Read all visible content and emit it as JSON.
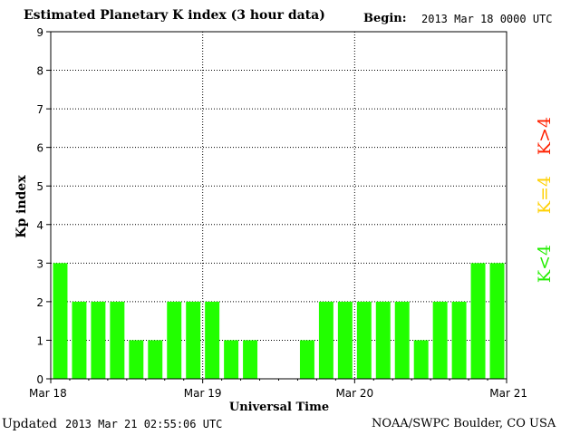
{
  "header": {
    "title": "Estimated Planetary K index (3 hour data)",
    "begin_label": "Begin:",
    "begin_value": "2013 Mar 18 0000 UTC"
  },
  "footer": {
    "updated_label": "Updated",
    "updated_value": "2013 Mar 21 02:55:06 UTC",
    "source": "NOAA/SWPC Boulder, CO USA"
  },
  "legend": {
    "high": {
      "text": "K>4",
      "color": "#ff2000"
    },
    "equal": {
      "text": "K=4",
      "color": "#ffd000"
    },
    "low": {
      "text": "K<4",
      "color": "#22ee00"
    }
  },
  "chart_data": {
    "type": "bar",
    "title": "Estimated Planetary K index (3 hour data)",
    "xlabel": "Universal Time",
    "ylabel": "Kp index",
    "ylim": [
      0,
      9
    ],
    "yticks": [
      0,
      1,
      2,
      3,
      4,
      5,
      6,
      7,
      8,
      9
    ],
    "xticks": [
      "Mar 18",
      "Mar 19",
      "Mar 20",
      "Mar 21"
    ],
    "grid": true,
    "bar_color": "#22ff00",
    "series": [
      {
        "values": [
          3,
          2,
          2,
          2,
          1,
          1,
          2,
          2,
          2,
          1,
          1,
          0,
          0,
          1,
          2,
          2,
          2,
          2,
          2,
          1,
          2,
          2,
          3,
          3
        ]
      }
    ]
  }
}
